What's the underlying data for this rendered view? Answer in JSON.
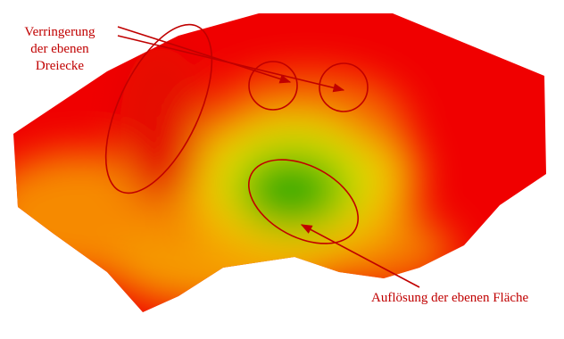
{
  "annotations": {
    "reduction": {
      "lines": [
        "Verringerung",
        "der ebenen",
        "Dreiecke"
      ]
    },
    "resolution": {
      "text": "Auflösung der ebenen Fläche"
    }
  }
}
